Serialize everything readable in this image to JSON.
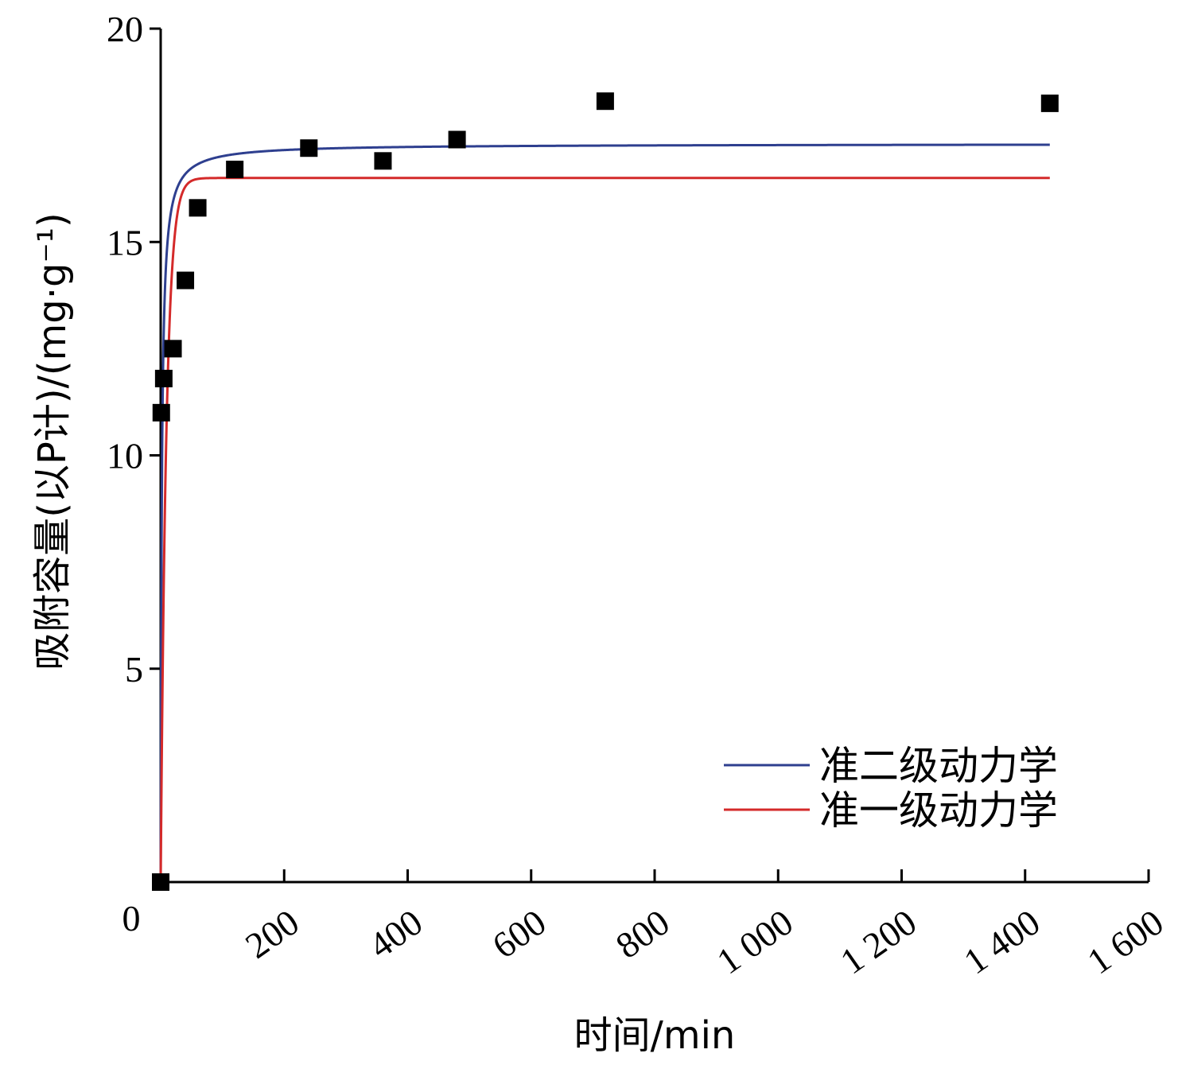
{
  "chart_data": {
    "type": "scatter",
    "xlabel": "时间/min",
    "ylabel": "吸附容量(以P计)/(mg·g⁻¹)",
    "xlim": [
      0,
      1600
    ],
    "ylim": [
      0,
      20
    ],
    "x_ticks": [
      200,
      400,
      600,
      800,
      1000,
      1200,
      1400,
      1600
    ],
    "x_tick_labels": [
      "200",
      "400",
      "600",
      "800",
      "1 000",
      "1 200",
      "1 400",
      "1 600"
    ],
    "y_ticks": [
      5,
      10,
      15,
      20
    ],
    "y_tick_labels": [
      "5",
      "10",
      "15",
      "20"
    ],
    "origin_label": "0",
    "grid": false,
    "legend_position": "bottom-right",
    "points": {
      "x": [
        0,
        1,
        5,
        20,
        40,
        60,
        120,
        240,
        360,
        480,
        720,
        1440
      ],
      "y": [
        0,
        11.0,
        11.8,
        12.5,
        14.1,
        15.8,
        16.7,
        17.2,
        16.9,
        17.4,
        18.3,
        18.25
      ],
      "color": "#000000"
    },
    "series": [
      {
        "name": "准二级动力学",
        "model": "pseudo-second-order",
        "qe": 17.3,
        "k": 0.034,
        "color": "#2e3f8f"
      },
      {
        "name": "准一级动力学",
        "model": "pseudo-first-order",
        "qe": 16.5,
        "k": 0.11,
        "color": "#d42a2a"
      }
    ]
  }
}
